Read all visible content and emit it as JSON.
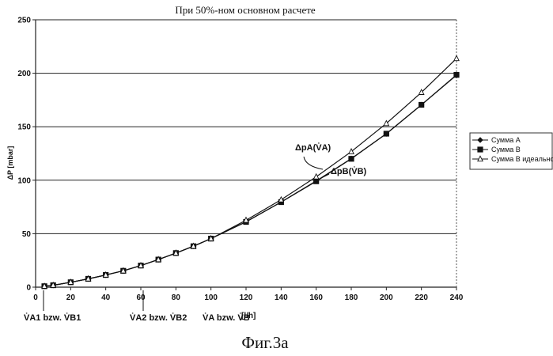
{
  "figure": {
    "caption": "Фиг.3а",
    "below_axis_annotations": [
      {
        "name": "va1-vb1",
        "text": "V̇A1 bzw. V̇B1"
      },
      {
        "name": "va2-vb2",
        "text": "V̇A2 bzw. V̇B2"
      },
      {
        "name": "va-vb",
        "text": "V̇A bzw. V̇B"
      }
    ],
    "curve_annotations": [
      {
        "name": "dpa",
        "text": "ΔpA(V̇A)"
      },
      {
        "name": "dpb",
        "text": "ΔpB(V̇B)"
      }
    ]
  },
  "chart_data": {
    "type": "line",
    "title": "При 50%-ном основном расчете",
    "xlabel": "[l/h]",
    "ylabel": "ΔP [mbar]",
    "xlim": [
      0,
      240
    ],
    "ylim": [
      0,
      250
    ],
    "x_ticks": [
      0,
      20,
      40,
      60,
      80,
      100,
      120,
      140,
      160,
      180,
      200,
      220,
      240
    ],
    "y_ticks": [
      0,
      50,
      100,
      150,
      200,
      250
    ],
    "grid": "horizontal",
    "legend_position": "right",
    "x": [
      5,
      10,
      20,
      30,
      40,
      50,
      60,
      70,
      80,
      90,
      100,
      120,
      140,
      160,
      180,
      200,
      220,
      240
    ],
    "series": [
      {
        "name": "Сумма A",
        "marker": "diamond",
        "color": "#111111",
        "values": [
          0.9,
          1.8,
          4.6,
          7.8,
          11.4,
          15.3,
          20.2,
          25.8,
          31.9,
          38.3,
          45.4,
          61.2,
          79.6,
          99.3,
          120.2,
          143.4,
          170.5,
          198.2
        ]
      },
      {
        "name": "Сумма B",
        "marker": "square",
        "color": "#111111",
        "values": [
          0.9,
          1.8,
          4.6,
          7.8,
          11.4,
          15.3,
          20.2,
          25.8,
          31.9,
          38.3,
          45.4,
          61.0,
          79.5,
          99.0,
          120.0,
          143.5,
          170.5,
          198.5
        ]
      },
      {
        "name": "Сумма В идеально",
        "marker": "triangle",
        "color": "#111111",
        "values": [
          0.9,
          1.8,
          4.6,
          7.8,
          11.4,
          15.3,
          20.2,
          25.8,
          31.9,
          38.3,
          45.4,
          62.6,
          81.7,
          103.2,
          126.7,
          153.0,
          182.1,
          213.8
        ]
      }
    ]
  }
}
